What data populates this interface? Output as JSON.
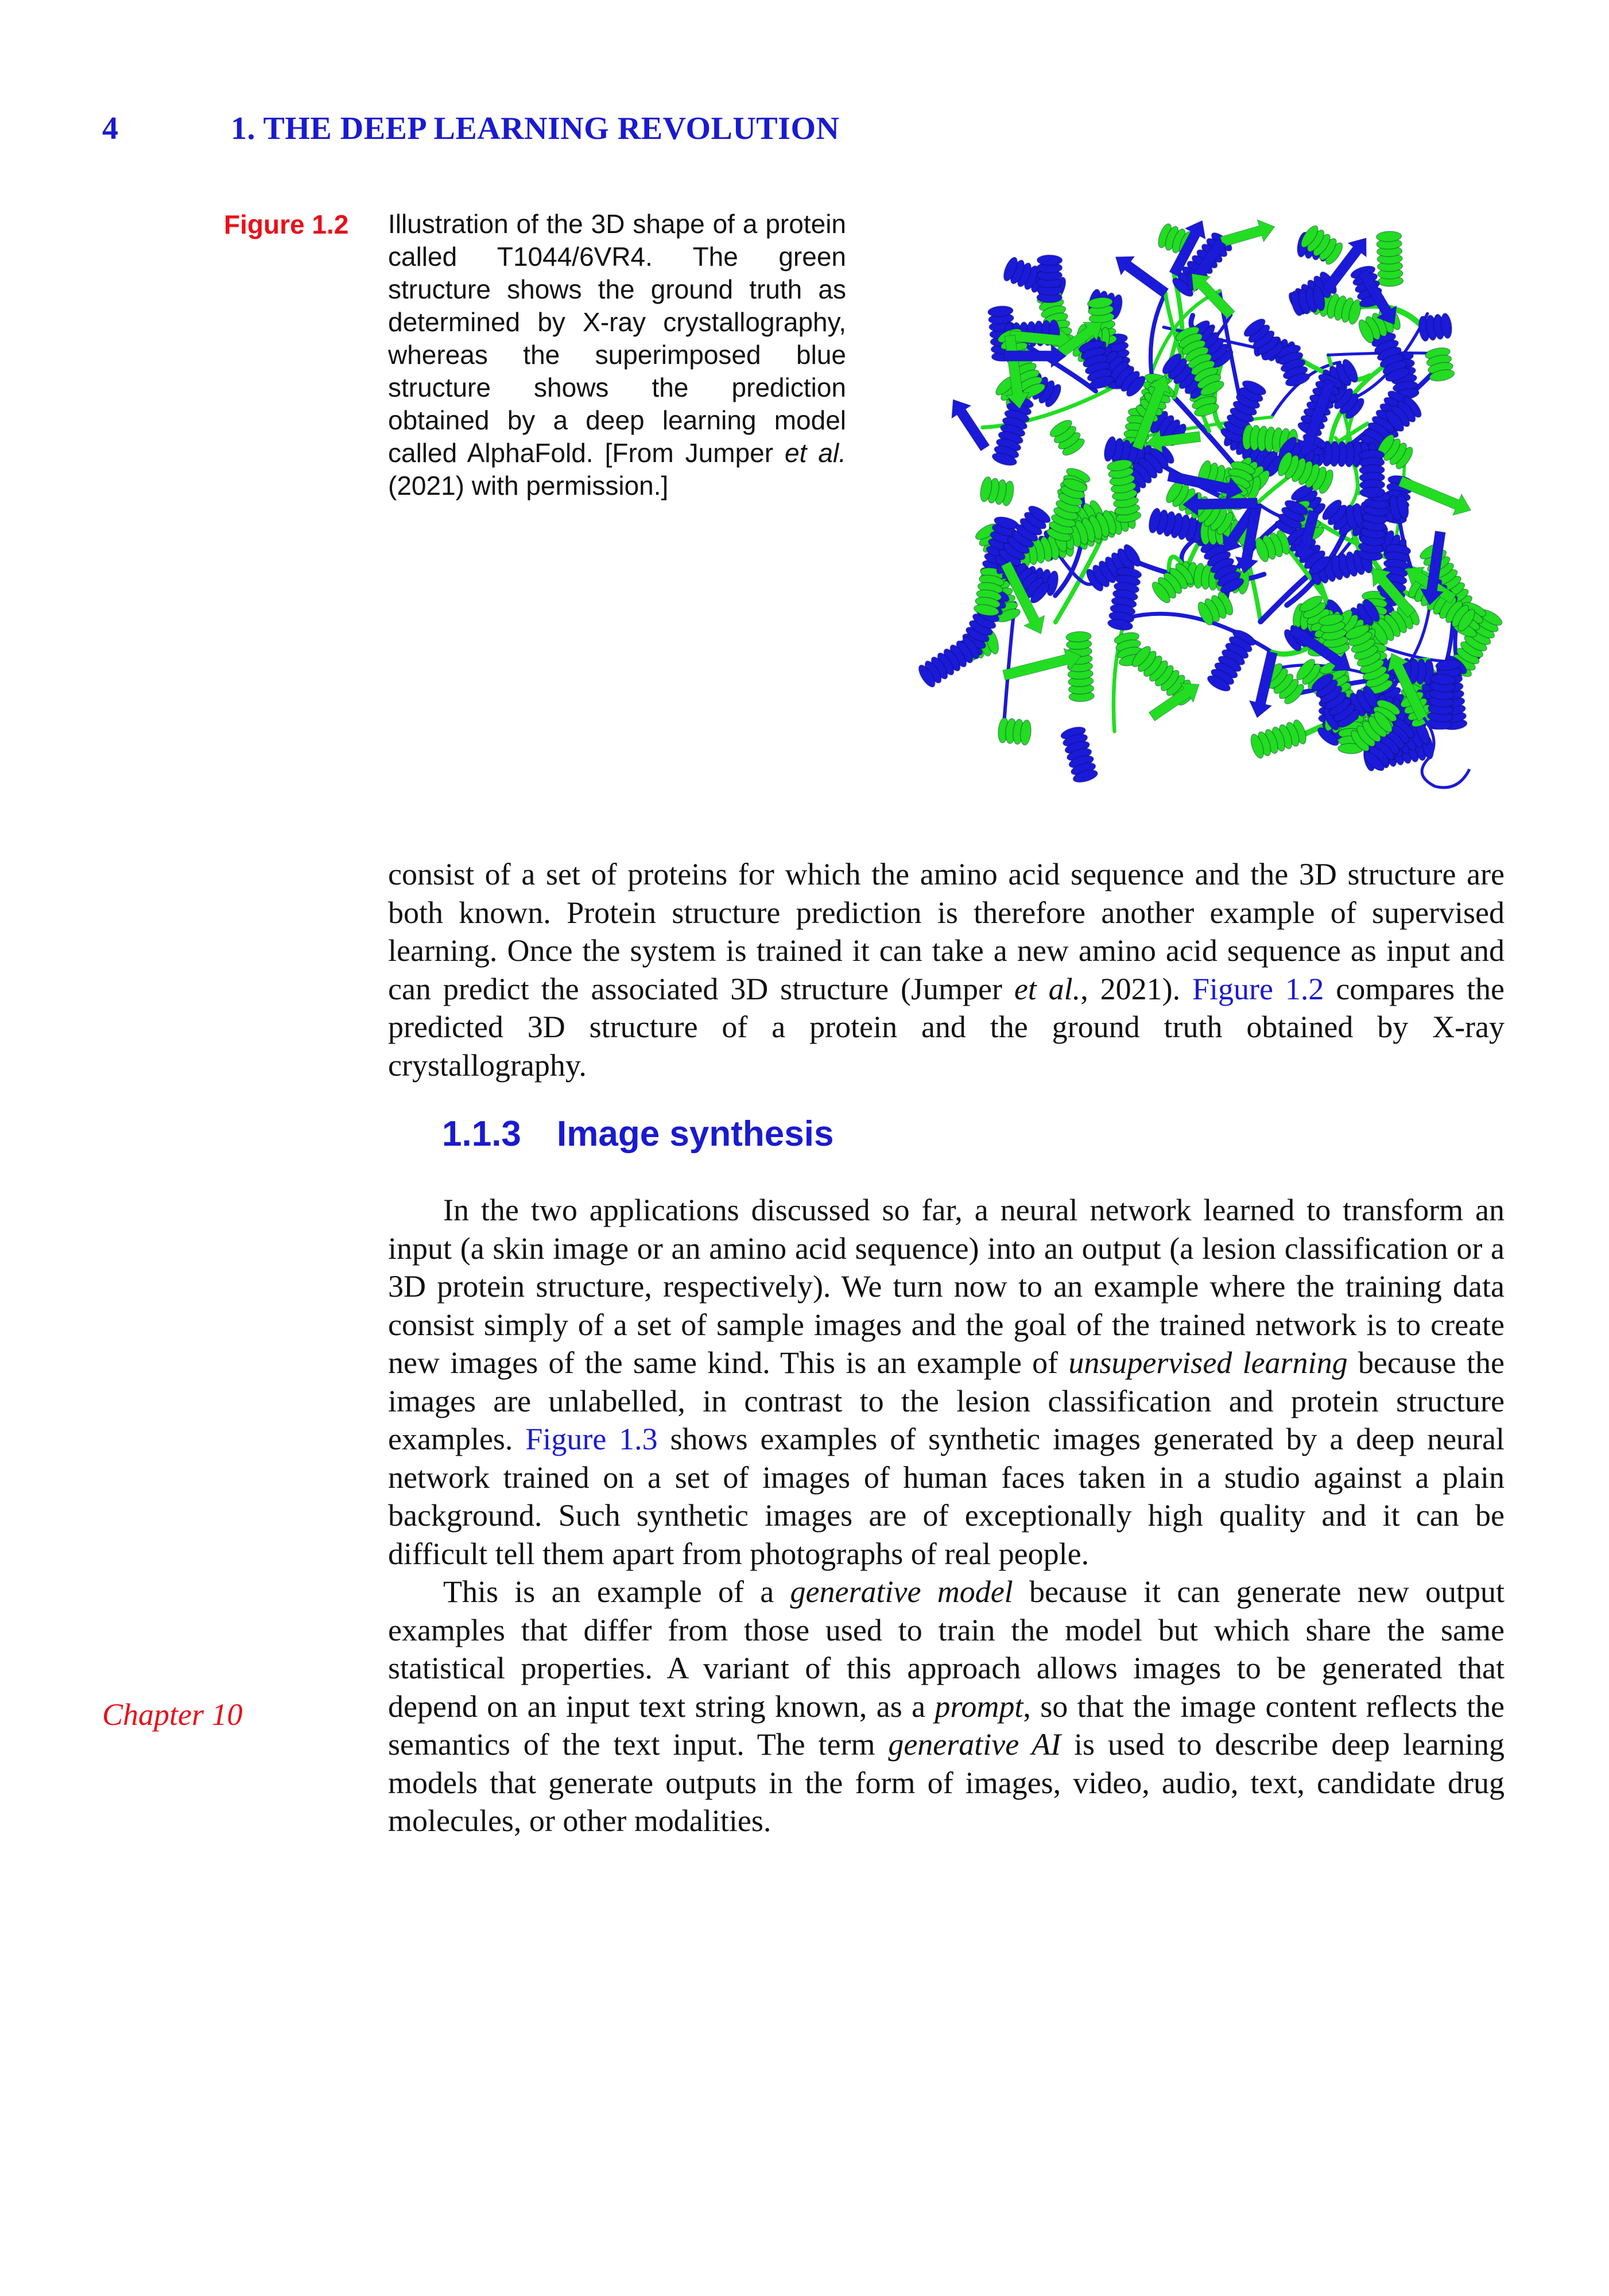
{
  "header": {
    "page_number": "4",
    "running_title": "1. THE DEEP LEARNING REVOLUTION"
  },
  "figure": {
    "label": "Figure 1.2",
    "caption_a": "Illustration of the 3D shape of a protein called T1044/6VR4. The green structure shows the ground truth as determined by X-ray crystallography, whereas the superimposed blue structure shows the prediction obtained by a deep learning model called AlphaFold. [From Jumper ",
    "caption_et_al": "et al.",
    "caption_b": " (2021) with permission.]",
    "colors": {
      "ground_truth": "#22dd22",
      "prediction": "#1a1ad8"
    }
  },
  "para1": {
    "a": "consist of a set of proteins for which the amino acid sequence and the 3D structure are both known. Protein structure prediction is therefore another example of supervised learning. Once the system is trained it can take a new amino acid sequence as input and can predict the associated 3D structure (Jumper ",
    "et_al": "et al.",
    "b": ", 2021). ",
    "link": "Figure 1.2",
    "c": " compares the predicted 3D structure of a protein and the ground truth obtained by X-ray crystallography."
  },
  "section": {
    "number": "1.1.3",
    "title": "Image synthesis"
  },
  "para2": {
    "a": "In the two applications discussed so far, a neural network learned to transform an input (a skin image or an amino acid sequence) into an output (a lesion classification or a 3D protein structure, respectively). We turn now to an example where the training data consist simply of a set of sample images and the goal of the trained network is to create new images of the same kind. This is an example of ",
    "em1": "unsupervised learning",
    "b": " because the images are unlabelled, in contrast to the lesion classification and protein structure examples. ",
    "link": "Figure 1.3",
    "c": " shows examples of synthetic images generated by a deep neural network trained on a set of images of human faces taken in a studio against a plain background. Such synthetic images are of exceptionally high quality and it can be difficult tell them apart from photographs of real people."
  },
  "para3": {
    "a": "This is an example of a ",
    "em1": "generative model",
    "b": " because it can generate new output examples that differ from those used to train the model but which share the same statistical properties. A variant of this approach allows images to be generated that depend on an input text string known, as a ",
    "em2": "prompt",
    "c": ", so that the image content reflects the semantics of the text input. The term ",
    "em3": "generative AI",
    "d": " is used to describe deep learning models that generate outputs in the form of images, video, audio, text, candidate drug molecules, or other modalities."
  },
  "margin_note": "Chapter 10"
}
